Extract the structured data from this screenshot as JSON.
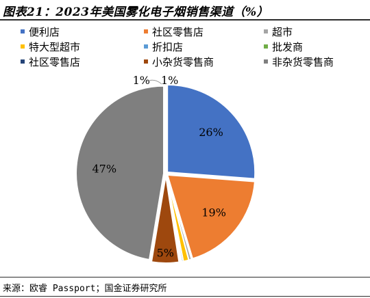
{
  "title": "图表21：2023年美国雾化电子烟销售渠道（%）",
  "source": "来源：欧睿 Passport；国金证券研究所",
  "chart_data": {
    "type": "pie",
    "title": "图表21：2023年美国雾化电子烟销售渠道（%）",
    "legend_position": "top",
    "slices": [
      {
        "label": "便利店",
        "value": 26,
        "color": "#4472C4",
        "data_label": "26%"
      },
      {
        "label": "社区零售店",
        "value": 19,
        "color": "#ED7D31",
        "data_label": "19%"
      },
      {
        "label": "超市",
        "value": 0.5,
        "color": "#A5A5A5",
        "data_label": ""
      },
      {
        "label": "特大型超市",
        "value": 1,
        "color": "#FFC000",
        "data_label": ""
      },
      {
        "label": "折扣店",
        "value": 0.3,
        "color": "#5B9BD5",
        "data_label": ""
      },
      {
        "label": "批发商",
        "value": 0.2,
        "color": "#70AD47",
        "data_label": ""
      },
      {
        "label": "社区零售店",
        "value": 0.2,
        "color": "#264478",
        "data_label": ""
      },
      {
        "label": "小杂货零售商",
        "value": 5,
        "color": "#9E480E",
        "data_label": "5%"
      },
      {
        "label": "非杂货零售商",
        "value": 47,
        "color": "#7F7F7F",
        "data_label": "47%"
      }
    ],
    "small_labels": [
      "1%",
      "1%"
    ]
  }
}
